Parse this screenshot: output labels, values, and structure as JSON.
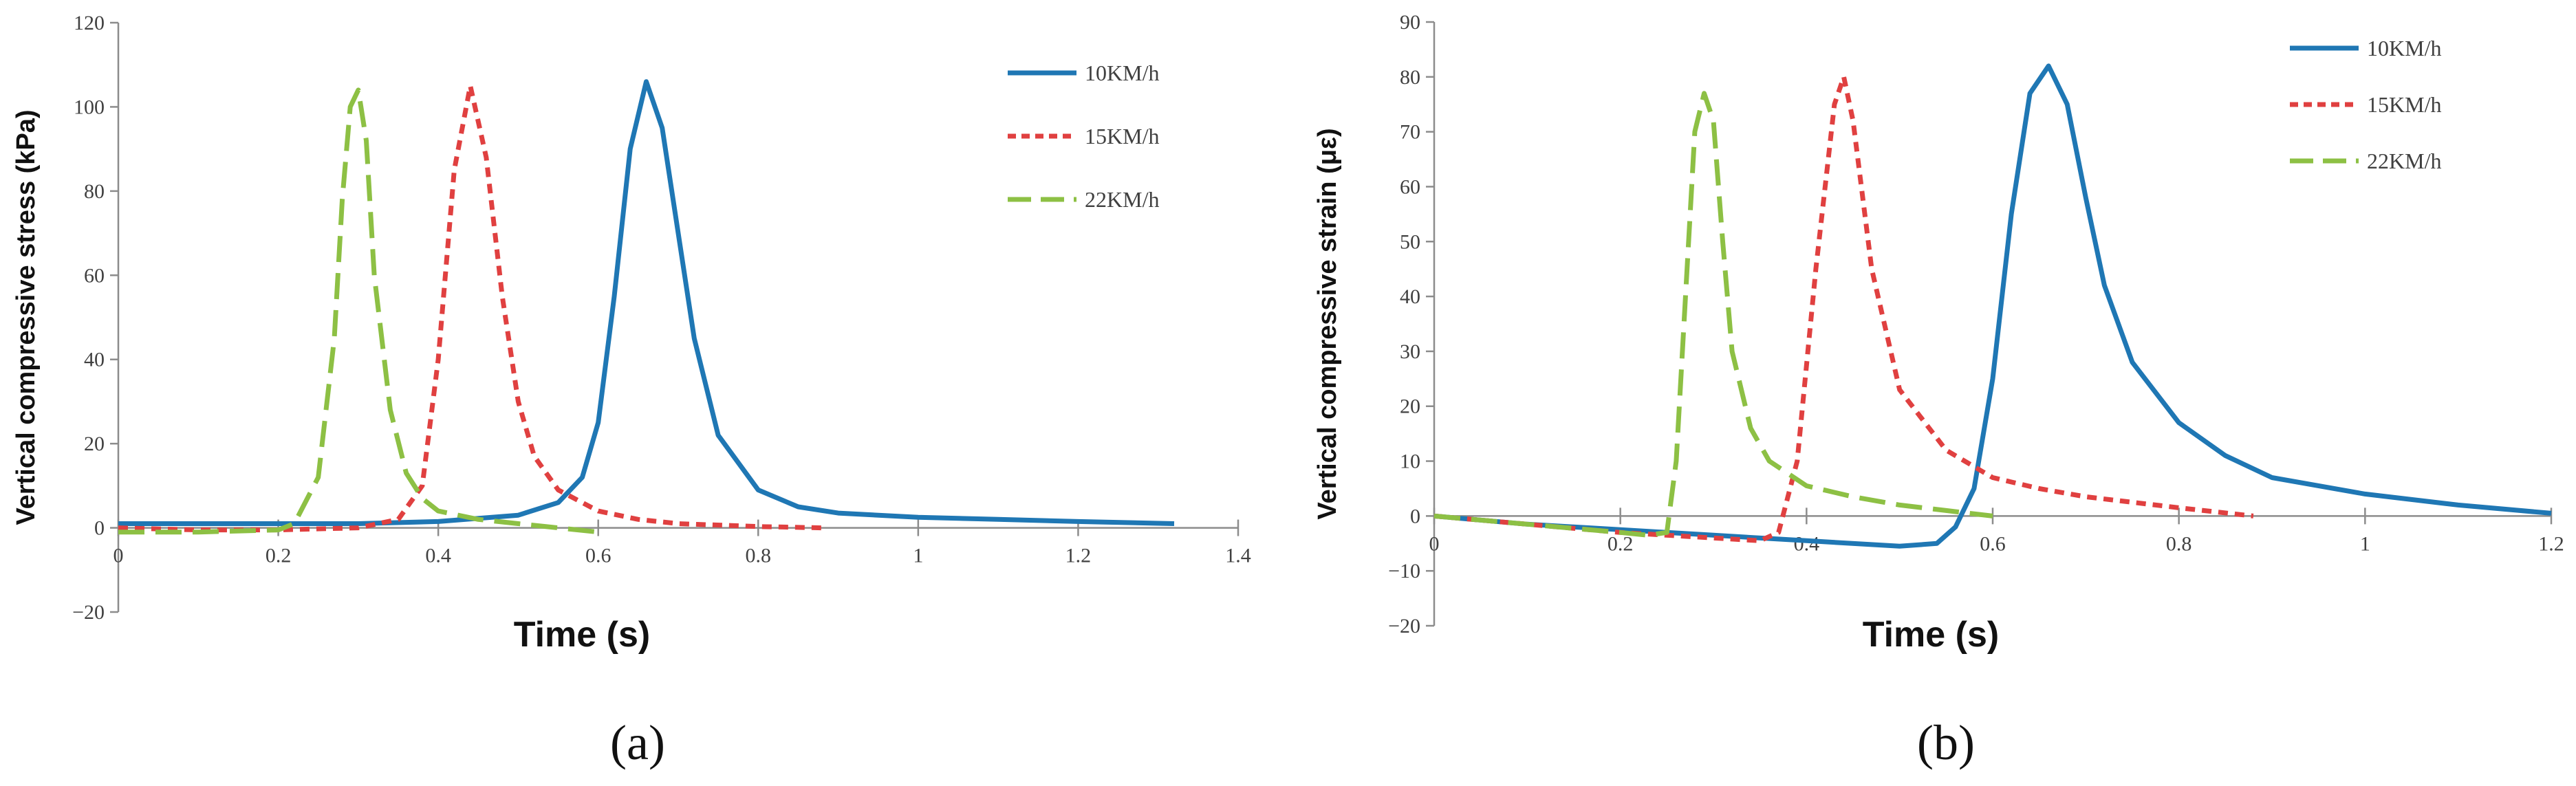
{
  "chart_data": [
    {
      "type": "line",
      "panel_label": "(a)",
      "xlabel": "Time (s)",
      "ylabel": "Vertical compressive stress (kPa)",
      "xlim": [
        0,
        1.4
      ],
      "ylim": [
        -20,
        120
      ],
      "xticks": [
        "0",
        "0.2",
        "0.4",
        "0.6",
        "0.8",
        "1",
        "1.2",
        "1.4"
      ],
      "yticks": [
        "−20",
        "0",
        "20",
        "40",
        "60",
        "80",
        "100",
        "120"
      ],
      "xtick_values": [
        0,
        0.2,
        0.4,
        0.6,
        0.8,
        1.0,
        1.2,
        1.4
      ],
      "ytick_values": [
        -20,
        0,
        20,
        40,
        60,
        80,
        100,
        120
      ],
      "legend_position": "top-right",
      "series": [
        {
          "name": "10KM/h",
          "color": "#1f77b4",
          "style": "solid",
          "x": [
            0,
            0.1,
            0.2,
            0.3,
            0.4,
            0.5,
            0.55,
            0.58,
            0.6,
            0.62,
            0.64,
            0.66,
            0.68,
            0.7,
            0.72,
            0.75,
            0.8,
            0.85,
            0.9,
            1.0,
            1.1,
            1.2,
            1.32
          ],
          "y": [
            1,
            1,
            1,
            1,
            1.5,
            3,
            6,
            12,
            25,
            55,
            90,
            106,
            95,
            70,
            45,
            22,
            9,
            5,
            3.5,
            2.5,
            2,
            1.5,
            1
          ]
        },
        {
          "name": "15KM/h",
          "color": "#e04040",
          "style": "short-dash",
          "x": [
            0,
            0.1,
            0.2,
            0.3,
            0.35,
            0.38,
            0.4,
            0.42,
            0.44,
            0.46,
            0.48,
            0.5,
            0.52,
            0.55,
            0.6,
            0.65,
            0.7,
            0.8,
            0.88
          ],
          "y": [
            0,
            -0.5,
            -0.5,
            0,
            2,
            10,
            40,
            85,
            105,
            88,
            55,
            30,
            17,
            9,
            4,
            2,
            1,
            0.3,
            0
          ]
        },
        {
          "name": "22KM/h",
          "color": "#8dc044",
          "style": "long-dash",
          "x": [
            0,
            0.1,
            0.2,
            0.22,
            0.25,
            0.27,
            0.28,
            0.29,
            0.3,
            0.31,
            0.32,
            0.34,
            0.36,
            0.38,
            0.4,
            0.45,
            0.5,
            0.55,
            0.6
          ],
          "y": [
            -1,
            -1,
            -0.5,
            1,
            12,
            45,
            78,
            100,
            104,
            92,
            60,
            28,
            13,
            7,
            4,
            2,
            1,
            0,
            -1
          ]
        }
      ]
    },
    {
      "type": "line",
      "panel_label": "(b)",
      "xlabel": "Time (s)",
      "ylabel": "Vertical compressive strain (με)",
      "xlim": [
        0,
        1.2
      ],
      "ylim": [
        -20,
        90
      ],
      "xticks": [
        "0",
        "0.2",
        "0.4",
        "0.6",
        "0.8",
        "1",
        "1.2"
      ],
      "yticks": [
        "−20",
        "−10",
        "0",
        "10",
        "20",
        "30",
        "40",
        "50",
        "60",
        "70",
        "80",
        "90"
      ],
      "xtick_values": [
        0,
        0.2,
        0.4,
        0.6,
        0.8,
        1.0,
        1.2
      ],
      "ytick_values": [
        -20,
        -10,
        0,
        10,
        20,
        30,
        40,
        50,
        60,
        70,
        80,
        90
      ],
      "legend_position": "top-right",
      "series": [
        {
          "name": "10KM/h",
          "color": "#1f77b4",
          "style": "solid",
          "x": [
            0,
            0.1,
            0.2,
            0.3,
            0.4,
            0.5,
            0.54,
            0.56,
            0.58,
            0.6,
            0.62,
            0.64,
            0.66,
            0.68,
            0.7,
            0.72,
            0.75,
            0.8,
            0.85,
            0.9,
            1.0,
            1.1,
            1.2
          ],
          "y": [
            0,
            -1.5,
            -2.5,
            -3.5,
            -4.5,
            -5.5,
            -5,
            -2,
            5,
            25,
            55,
            77,
            82,
            75,
            58,
            42,
            28,
            17,
            11,
            7,
            4,
            2,
            0.5
          ]
        },
        {
          "name": "15KM/h",
          "color": "#e04040",
          "style": "short-dash",
          "x": [
            0,
            0.1,
            0.2,
            0.3,
            0.35,
            0.37,
            0.39,
            0.41,
            0.43,
            0.44,
            0.45,
            0.47,
            0.5,
            0.55,
            0.6,
            0.65,
            0.7,
            0.8,
            0.88
          ],
          "y": [
            0,
            -1.5,
            -3,
            -4,
            -4.5,
            -3,
            10,
            45,
            75,
            80,
            72,
            45,
            23,
            12,
            7,
            5,
            3.5,
            1.5,
            0
          ]
        },
        {
          "name": "22KM/h",
          "color": "#8dc044",
          "style": "long-dash",
          "x": [
            0,
            0.1,
            0.2,
            0.23,
            0.25,
            0.26,
            0.27,
            0.28,
            0.29,
            0.3,
            0.31,
            0.32,
            0.34,
            0.36,
            0.4,
            0.45,
            0.5,
            0.55,
            0.6
          ],
          "y": [
            0,
            -1.5,
            -3,
            -3.5,
            -3,
            10,
            40,
            70,
            77,
            72,
            50,
            30,
            16,
            10,
            5.5,
            3.5,
            2,
            1,
            0
          ]
        }
      ]
    }
  ]
}
